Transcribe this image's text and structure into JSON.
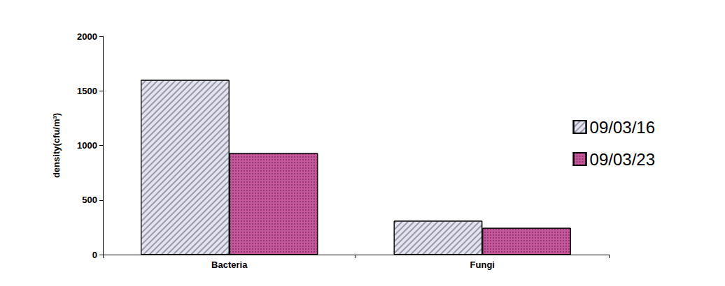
{
  "chart_data": {
    "type": "bar",
    "y_label": "density(cfu/m³)",
    "categories": [
      "Bacteria",
      "Fungi"
    ],
    "series": [
      {
        "name": "09/03/16",
        "color": "#e4e4ee",
        "values": [
          1600,
          310
        ]
      },
      {
        "name": "09/03/23",
        "color": "#c4589a",
        "values": [
          930,
          245
        ]
      }
    ],
    "ylim": [
      0,
      2000
    ],
    "yticks": [
      0,
      500,
      1000,
      1500,
      2000
    ],
    "grid": false,
    "legend": "right"
  }
}
